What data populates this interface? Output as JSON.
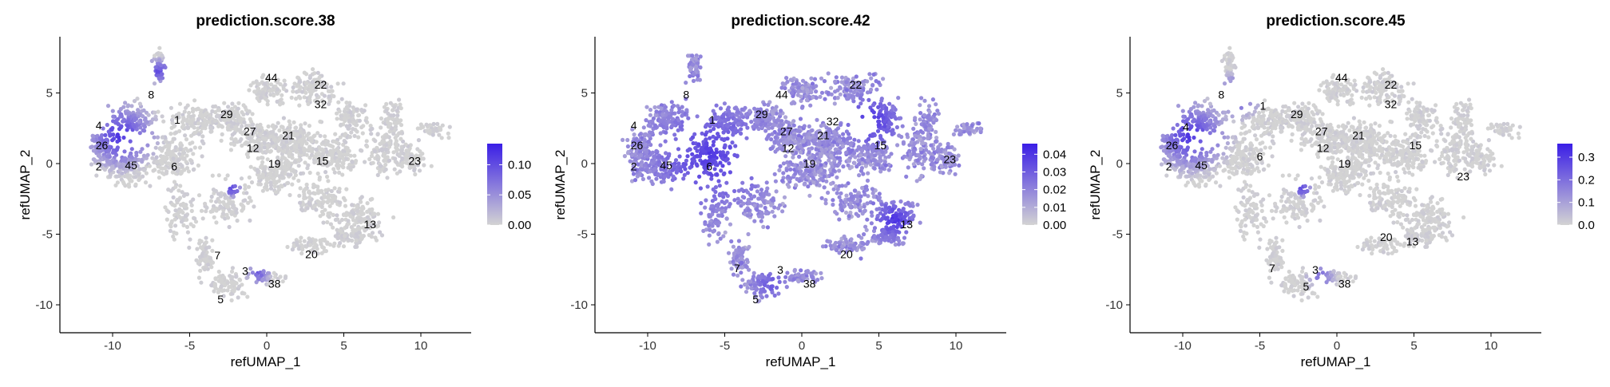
{
  "chart_data": [
    {
      "type": "scatter",
      "title": "prediction.score.38",
      "xlabel": "refUMAP_1",
      "ylabel": "refUMAP_2",
      "xlim": [
        -13.5,
        13
      ],
      "ylim": [
        -11.8,
        8.3
      ],
      "x_ticks": [
        -10,
        -5,
        0,
        5,
        10
      ],
      "y_ticks": [
        5,
        0,
        -5,
        -10
      ],
      "x_tick_labels": [
        "-10",
        "-5",
        "0",
        "5",
        "10"
      ],
      "y_tick_labels": [
        "5",
        "0",
        "-5",
        "-10"
      ],
      "colorbar": {
        "low_color": "#d3d3d3",
        "high_color": "#3a1ee6",
        "range": [
          0,
          0.135
        ],
        "ticks": [
          0.0,
          0.05,
          0.1
        ],
        "tick_labels": [
          "0.00",
          "0.05",
          "0.10"
        ]
      },
      "cluster_labels": [
        {
          "label": "44",
          "x": 0.3,
          "y": 6.1
        },
        {
          "label": "22",
          "x": 3.5,
          "y": 5.6
        },
        {
          "label": "8",
          "x": -7.5,
          "y": 4.9
        },
        {
          "label": "32",
          "x": 3.5,
          "y": 4.2
        },
        {
          "label": "29",
          "x": -2.6,
          "y": 3.5
        },
        {
          "label": "1",
          "x": -5.8,
          "y": 3.1
        },
        {
          "label": "4",
          "x": -10.9,
          "y": 2.7
        },
        {
          "label": "27",
          "x": -1.1,
          "y": 2.3
        },
        {
          "label": "21",
          "x": 1.4,
          "y": 2.0
        },
        {
          "label": "26",
          "x": -10.7,
          "y": 1.3
        },
        {
          "label": "12",
          "x": -0.9,
          "y": 1.1
        },
        {
          "label": "15",
          "x": 3.6,
          "y": 0.2
        },
        {
          "label": "19",
          "x": 0.5,
          "y": 0.0
        },
        {
          "label": "2",
          "x": -10.9,
          "y": -0.2
        },
        {
          "label": "45",
          "x": -8.8,
          "y": -0.1
        },
        {
          "label": "6",
          "x": -6.0,
          "y": -0.2
        },
        {
          "label": "23",
          "x": 9.6,
          "y": 0.2
        },
        {
          "label": "13",
          "x": 6.7,
          "y": -4.3
        },
        {
          "label": "20",
          "x": 2.9,
          "y": -6.4
        },
        {
          "label": "7",
          "x": -3.2,
          "y": -6.5
        },
        {
          "label": "3",
          "x": -1.4,
          "y": -7.6
        },
        {
          "label": "38",
          "x": 0.5,
          "y": -8.5
        },
        {
          "label": "5",
          "x": -3.0,
          "y": -9.6
        }
      ]
    },
    {
      "type": "scatter",
      "title": "prediction.score.42",
      "xlabel": "refUMAP_1",
      "ylabel": "refUMAP_2",
      "xlim": [
        -13.5,
        13
      ],
      "ylim": [
        -11.8,
        8.3
      ],
      "x_ticks": [
        -10,
        -5,
        0,
        5,
        10
      ],
      "y_ticks": [
        5,
        0,
        -5,
        -10
      ],
      "x_tick_labels": [
        "-10",
        "-5",
        "0",
        "5",
        "10"
      ],
      "y_tick_labels": [
        "5",
        "0",
        "-5",
        "-10"
      ],
      "colorbar": {
        "low_color": "#d3d3d3",
        "high_color": "#3a1ee6",
        "range": [
          0,
          0.046
        ],
        "ticks": [
          0.0,
          0.01,
          0.02,
          0.03,
          0.04
        ],
        "tick_labels": [
          "0.00",
          "0.01",
          "0.02",
          "0.03",
          "0.04"
        ]
      },
      "cluster_labels": [
        {
          "label": "22",
          "x": 3.5,
          "y": 5.6
        },
        {
          "label": "8",
          "x": -7.5,
          "y": 4.9
        },
        {
          "label": "44",
          "x": -1.3,
          "y": 4.9
        },
        {
          "label": "29",
          "x": -2.6,
          "y": 3.5
        },
        {
          "label": "1",
          "x": -5.8,
          "y": 3.1
        },
        {
          "label": "32",
          "x": 2.0,
          "y": 3.0
        },
        {
          "label": "4",
          "x": -10.9,
          "y": 2.7
        },
        {
          "label": "27",
          "x": -1.0,
          "y": 2.3
        },
        {
          "label": "21",
          "x": 1.4,
          "y": 2.0
        },
        {
          "label": "26",
          "x": -10.7,
          "y": 1.3
        },
        {
          "label": "15",
          "x": 5.1,
          "y": 1.3
        },
        {
          "label": "12",
          "x": -0.9,
          "y": 1.1
        },
        {
          "label": "19",
          "x": 0.5,
          "y": 0.0
        },
        {
          "label": "23",
          "x": 9.6,
          "y": 0.3
        },
        {
          "label": "2",
          "x": -10.9,
          "y": -0.2
        },
        {
          "label": "45",
          "x": -8.8,
          "y": -0.1
        },
        {
          "label": "6",
          "x": -6.0,
          "y": -0.2
        },
        {
          "label": "13",
          "x": 6.8,
          "y": -4.3
        },
        {
          "label": "20",
          "x": 2.9,
          "y": -6.4
        },
        {
          "label": "7",
          "x": -4.2,
          "y": -7.4
        },
        {
          "label": "3",
          "x": -1.4,
          "y": -7.5
        },
        {
          "label": "38",
          "x": 0.5,
          "y": -8.5
        },
        {
          "label": "5",
          "x": -3.0,
          "y": -9.6
        }
      ]
    },
    {
      "type": "scatter",
      "title": "prediction.score.45",
      "xlabel": "refUMAP_1",
      "ylabel": "refUMAP_2",
      "xlim": [
        -13.5,
        13
      ],
      "ylim": [
        -11.8,
        8.3
      ],
      "x_ticks": [
        -10,
        -5,
        0,
        5,
        10
      ],
      "y_ticks": [
        5,
        0,
        -5,
        -10
      ],
      "x_tick_labels": [
        "-10",
        "-5",
        "0",
        "5",
        "10"
      ],
      "y_tick_labels": [
        "5",
        "0",
        "-5",
        "-10"
      ],
      "colorbar": {
        "low_color": "#d3d3d3",
        "high_color": "#3a1ee6",
        "range": [
          0,
          0.36
        ],
        "ticks": [
          0.0,
          0.1,
          0.2,
          0.3
        ],
        "tick_labels": [
          "0.0",
          "0.1",
          "0.2",
          "0.3"
        ]
      },
      "cluster_labels": [
        {
          "label": "44",
          "x": 0.3,
          "y": 6.1
        },
        {
          "label": "22",
          "x": 3.5,
          "y": 5.6
        },
        {
          "label": "8",
          "x": -7.5,
          "y": 4.9
        },
        {
          "label": "32",
          "x": 3.5,
          "y": 4.2
        },
        {
          "label": "1",
          "x": -4.8,
          "y": 4.1
        },
        {
          "label": "29",
          "x": -2.6,
          "y": 3.5
        },
        {
          "label": "4",
          "x": -9.8,
          "y": 2.6
        },
        {
          "label": "27",
          "x": -1.0,
          "y": 2.3
        },
        {
          "label": "21",
          "x": 1.4,
          "y": 2.0
        },
        {
          "label": "26",
          "x": -10.7,
          "y": 1.3
        },
        {
          "label": "15",
          "x": 5.1,
          "y": 1.3
        },
        {
          "label": "12",
          "x": -0.9,
          "y": 1.1
        },
        {
          "label": "6",
          "x": -5.0,
          "y": 0.5
        },
        {
          "label": "19",
          "x": 0.5,
          "y": 0.0
        },
        {
          "label": "2",
          "x": -10.9,
          "y": -0.2
        },
        {
          "label": "45",
          "x": -8.8,
          "y": -0.1
        },
        {
          "label": "23",
          "x": 8.2,
          "y": -0.9
        },
        {
          "label": "20",
          "x": 3.2,
          "y": -5.2
        },
        {
          "label": "13",
          "x": 4.9,
          "y": -5.5
        },
        {
          "label": "7",
          "x": -4.2,
          "y": -7.4
        },
        {
          "label": "3",
          "x": -1.4,
          "y": -7.5
        },
        {
          "label": "38",
          "x": 0.5,
          "y": -8.5
        },
        {
          "label": "5",
          "x": -2.0,
          "y": -8.7
        }
      ]
    }
  ]
}
